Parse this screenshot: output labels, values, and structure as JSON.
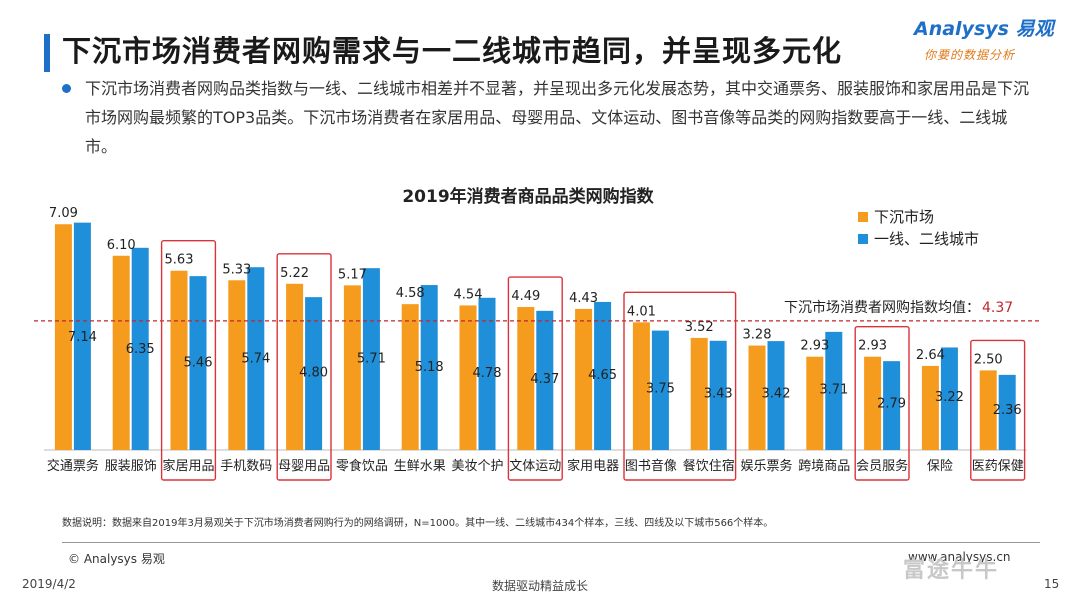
{
  "header": {
    "title": "下沉市场消费者网购需求与一二线城市趋同，并呈现多元化",
    "logo_main": "Analysys 易观",
    "logo_sub": "你要的数据分析"
  },
  "description": "下沉市场消费者网购品类指数与一线、二线城市相差并不显著，并呈现出多元化发展态势，其中交通票务、服装服饰和家居用品是下沉市场网购最频繁的TOP3品类。下沉市场消费者在家居用品、母婴用品、文体运动、图书音像等品类的网购指数要高于一线、二线城市。",
  "chart_data": {
    "type": "bar",
    "title": "2019年消费者商品品类网购指数",
    "categories": [
      "交通票务",
      "服装服饰",
      "家居用品",
      "手机数码",
      "母婴用品",
      "零食饮品",
      "生鲜水果",
      "美妆个护",
      "文体运动",
      "家用电器",
      "图书音像",
      "餐饮住宿",
      "娱乐票务",
      "跨境商品",
      "会员服务",
      "保险",
      "医药保健"
    ],
    "series": [
      {
        "name": "下沉市场",
        "color": "#f59b1e",
        "values": [
          7.09,
          6.1,
          5.63,
          5.33,
          5.22,
          5.17,
          4.58,
          4.54,
          4.49,
          4.43,
          4.01,
          3.52,
          3.28,
          2.93,
          2.93,
          2.64,
          2.5
        ]
      },
      {
        "name": "一线、二线城市",
        "color": "#1e8fd8",
        "values": [
          7.14,
          6.35,
          5.46,
          5.74,
          4.8,
          5.71,
          5.18,
          4.78,
          4.37,
          4.65,
          3.75,
          3.43,
          3.42,
          3.71,
          2.79,
          3.22,
          2.36
        ]
      }
    ],
    "ylim": [
      0,
      7.6
    ],
    "reference_line": {
      "label": "下沉市场消费者网购指数均值：",
      "value": 4.37,
      "color": "#c0272d"
    },
    "highlighted_groups": [
      [
        "家居用品"
      ],
      [
        "母婴用品"
      ],
      [
        "文体运动"
      ],
      [
        "图书音像",
        "餐饮住宿"
      ],
      [
        "会员服务"
      ],
      [
        "医药保健"
      ]
    ],
    "highlight_color": "#d9343a",
    "legend_position": "top-right"
  },
  "note": "数据说明：数据来自2019年3月易观关于下沉市场消费者网购行为的网络调研，N=1000。其中一线、二线城市434个样本，三线、四线及以下城市566个样本。",
  "footer": {
    "copyright": "© Analysys 易观",
    "website": "www.analysys.cn",
    "date": "2019/4/2",
    "center": "数据驱动精益成长",
    "page": "15",
    "watermark": "富途牛牛"
  }
}
